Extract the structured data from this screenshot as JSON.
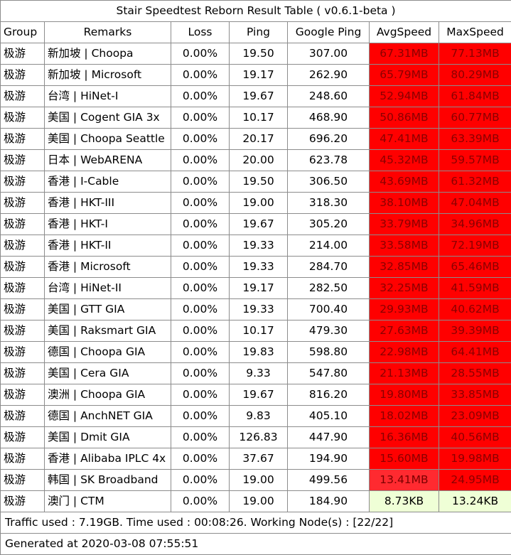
{
  "title": "Stair Speedtest Reborn Result Table ( v0.6.1-beta )",
  "headers": [
    "Group",
    "Remarks",
    "Loss",
    "Ping",
    "Google Ping",
    "AvgSpeed",
    "MaxSpeed"
  ],
  "rows": [
    {
      "group": "极游",
      "remarks": "新加坡 | Choopa",
      "loss": "0.00%",
      "ping": "19.50",
      "google_ping": "307.00",
      "avg": "67.31MB",
      "max": "77.13MB",
      "avg_level": "red",
      "max_level": "red"
    },
    {
      "group": "极游",
      "remarks": "新加坡 | Microsoft",
      "loss": "0.00%",
      "ping": "19.17",
      "google_ping": "262.90",
      "avg": "65.79MB",
      "max": "80.29MB",
      "avg_level": "red",
      "max_level": "red"
    },
    {
      "group": "极游",
      "remarks": "台湾 | HiNet-I",
      "loss": "0.00%",
      "ping": "19.67",
      "google_ping": "248.60",
      "avg": "52.94MB",
      "max": "61.84MB",
      "avg_level": "red",
      "max_level": "red"
    },
    {
      "group": "极游",
      "remarks": "美国 | Cogent GIA 3x",
      "loss": "0.00%",
      "ping": "10.17",
      "google_ping": "468.90",
      "avg": "50.86MB",
      "max": "60.77MB",
      "avg_level": "red",
      "max_level": "red"
    },
    {
      "group": "极游",
      "remarks": "美国 | Choopa Seattle",
      "loss": "0.00%",
      "ping": "20.17",
      "google_ping": "696.20",
      "avg": "47.41MB",
      "max": "63.39MB",
      "avg_level": "red",
      "max_level": "red"
    },
    {
      "group": "极游",
      "remarks": "日本 | WebARENA",
      "loss": "0.00%",
      "ping": "20.00",
      "google_ping": "623.78",
      "avg": "45.32MB",
      "max": "59.57MB",
      "avg_level": "red",
      "max_level": "red"
    },
    {
      "group": "极游",
      "remarks": "香港 | I-Cable",
      "loss": "0.00%",
      "ping": "19.50",
      "google_ping": "306.50",
      "avg": "43.69MB",
      "max": "61.32MB",
      "avg_level": "red",
      "max_level": "red"
    },
    {
      "group": "极游",
      "remarks": "香港 | HKT-III",
      "loss": "0.00%",
      "ping": "19.00",
      "google_ping": "318.30",
      "avg": "38.10MB",
      "max": "47.04MB",
      "avg_level": "red",
      "max_level": "red"
    },
    {
      "group": "极游",
      "remarks": "香港 | HKT-I",
      "loss": "0.00%",
      "ping": "19.67",
      "google_ping": "305.20",
      "avg": "33.79MB",
      "max": "34.96MB",
      "avg_level": "red",
      "max_level": "red"
    },
    {
      "group": "极游",
      "remarks": "香港 | HKT-II",
      "loss": "0.00%",
      "ping": "19.33",
      "google_ping": "214.00",
      "avg": "33.58MB",
      "max": "72.19MB",
      "avg_level": "red",
      "max_level": "red"
    },
    {
      "group": "极游",
      "remarks": "香港 | Microsoft",
      "loss": "0.00%",
      "ping": "19.33",
      "google_ping": "284.70",
      "avg": "32.85MB",
      "max": "65.46MB",
      "avg_level": "red",
      "max_level": "red"
    },
    {
      "group": "极游",
      "remarks": "台湾 | HiNet-II",
      "loss": "0.00%",
      "ping": "19.17",
      "google_ping": "282.50",
      "avg": "32.25MB",
      "max": "41.59MB",
      "avg_level": "red",
      "max_level": "red"
    },
    {
      "group": "极游",
      "remarks": "美国 | GTT GIA",
      "loss": "0.00%",
      "ping": "19.33",
      "google_ping": "700.40",
      "avg": "29.93MB",
      "max": "40.62MB",
      "avg_level": "red",
      "max_level": "red"
    },
    {
      "group": "极游",
      "remarks": "美国 | Raksmart GIA",
      "loss": "0.00%",
      "ping": "10.17",
      "google_ping": "479.30",
      "avg": "27.63MB",
      "max": "39.39MB",
      "avg_level": "red",
      "max_level": "red"
    },
    {
      "group": "极游",
      "remarks": "德国 | Choopa GIA",
      "loss": "0.00%",
      "ping": "19.83",
      "google_ping": "598.80",
      "avg": "22.98MB",
      "max": "64.41MB",
      "avg_level": "red",
      "max_level": "red"
    },
    {
      "group": "极游",
      "remarks": "美国 | Cera GIA",
      "loss": "0.00%",
      "ping": "9.33",
      "google_ping": "547.80",
      "avg": "21.13MB",
      "max": "28.55MB",
      "avg_level": "red",
      "max_level": "red"
    },
    {
      "group": "极游",
      "remarks": "澳洲 | Choopa GIA",
      "loss": "0.00%",
      "ping": "19.67",
      "google_ping": "816.20",
      "avg": "19.80MB",
      "max": "33.85MB",
      "avg_level": "red",
      "max_level": "red"
    },
    {
      "group": "极游",
      "remarks": "德国 | AnchNET GIA",
      "loss": "0.00%",
      "ping": "9.83",
      "google_ping": "405.10",
      "avg": "18.02MB",
      "max": "23.09MB",
      "avg_level": "red",
      "max_level": "red"
    },
    {
      "group": "极游",
      "remarks": "美国 | Dmit GIA",
      "loss": "0.00%",
      "ping": "126.83",
      "google_ping": "447.90",
      "avg": "16.36MB",
      "max": "40.56MB",
      "avg_level": "red",
      "max_level": "red"
    },
    {
      "group": "极游",
      "remarks": "香港 | Alibaba IPLC 4x",
      "loss": "0.00%",
      "ping": "37.67",
      "google_ping": "194.90",
      "avg": "15.60MB",
      "max": "19.98MB",
      "avg_level": "red",
      "max_level": "red"
    },
    {
      "group": "极游",
      "remarks": "韩国 | SK Broadband",
      "loss": "0.00%",
      "ping": "19.00",
      "google_ping": "499.56",
      "avg": "13.41MB",
      "max": "24.95MB",
      "avg_level": "pink",
      "max_level": "red"
    },
    {
      "group": "极游",
      "remarks": "澳门 | CTM",
      "loss": "0.00%",
      "ping": "19.00",
      "google_ping": "184.90",
      "avg": "8.73KB",
      "max": "13.24KB",
      "avg_level": "light",
      "max_level": "light"
    }
  ],
  "footer": {
    "traffic": "Traffic used : 7.19GB. Time used : 00:08:26. Working Node(s) : [22/22]",
    "generated": "Generated at 2020-03-08 07:55:51"
  },
  "colors": {
    "red": "#ff0000",
    "pink": "#ff2a30",
    "light": "#efffd6",
    "border": "#8c8c8c"
  }
}
